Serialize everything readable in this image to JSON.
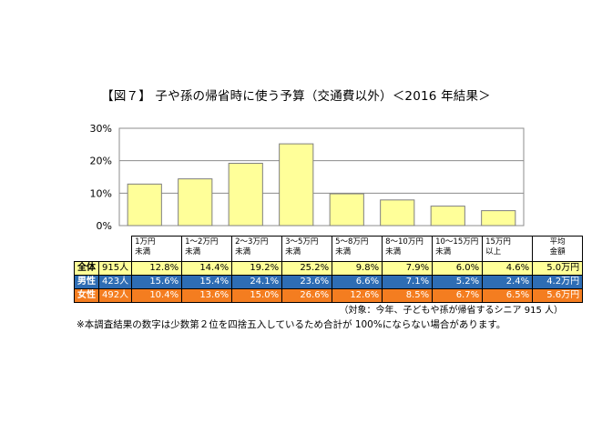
{
  "title": "【図７】 子や孫の帰省時に使う予算（交通費以外）＜2016 年結果＞",
  "chart_data": {
    "type": "bar",
    "categories": [
      "1万円\n未満",
      "1～2万円\n未満",
      "2～3万円\n未満",
      "3～5万円\n未満",
      "5～8万円\n未満",
      "8～10万円\n未満",
      "10～15万円\n未満",
      "15万円\n以上"
    ],
    "values": [
      12.8,
      14.4,
      19.2,
      25.2,
      9.8,
      7.9,
      6.0,
      4.6
    ],
    "ylim": [
      0,
      30
    ],
    "yticks": [
      "0%",
      "10%",
      "20%",
      "30%"
    ],
    "bar_color": "#ffff99",
    "grid": true
  },
  "table": {
    "avg_header": "平均\n金額",
    "rows": [
      {
        "label": "全体",
        "n": "915人",
        "values": [
          "12.8%",
          "14.4%",
          "19.2%",
          "25.2%",
          "9.8%",
          "7.9%",
          "6.0%",
          "4.6%"
        ],
        "avg": "5.0万円",
        "color": "#ffff99"
      },
      {
        "label": "男性",
        "n": "423人",
        "values": [
          "15.6%",
          "15.4%",
          "24.1%",
          "23.6%",
          "6.6%",
          "7.1%",
          "5.2%",
          "2.4%"
        ],
        "avg": "4.2万円",
        "color": "#2e6db4"
      },
      {
        "label": "女性",
        "n": "492人",
        "values": [
          "10.4%",
          "13.6%",
          "15.0%",
          "26.6%",
          "12.6%",
          "8.5%",
          "6.7%",
          "6.5%"
        ],
        "avg": "5.6万円",
        "color": "#f47d20"
      }
    ]
  },
  "notes": {
    "target": "（対象：今年、子どもや孫が帰省するシニア 915 人）",
    "main": "※本調査結果の数字は少数第２位を四捨五入しているため合計が 100%にならない場合があります。"
  }
}
